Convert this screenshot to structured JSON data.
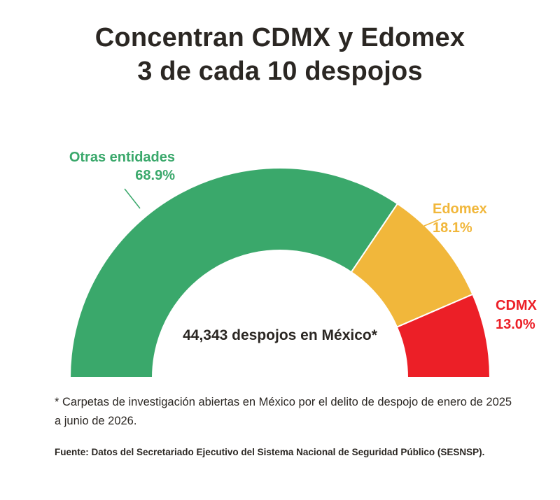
{
  "title": {
    "line1": "Concentran CDMX y Edomex",
    "line2": "3 de cada 10 despojos"
  },
  "center_label": "44,343 despojos en México*",
  "footnote": "* Carpetas de investigación abiertas en México por el delito de despojo de enero de 2025 a junio de 2026.",
  "source": "Fuente: Datos del Secretariado Ejecutivo del Sistema Nacional de Seguridad Público (SESNSP).",
  "chart_data": {
    "type": "pie",
    "variant": "half-donut",
    "title": "Concentran CDMX y Edomex 3 de cada 10 despojos",
    "total": 44343,
    "slices": [
      {
        "name": "Otras entidades",
        "value": 68.9,
        "label": "68.9%",
        "color": "#3aa86b"
      },
      {
        "name": "Edomex",
        "value": 18.1,
        "label": "18.1%",
        "color": "#f1b73b"
      },
      {
        "name": "CDMX",
        "value": 13.0,
        "label": "13.0%",
        "color": "#ec1f27"
      }
    ]
  }
}
